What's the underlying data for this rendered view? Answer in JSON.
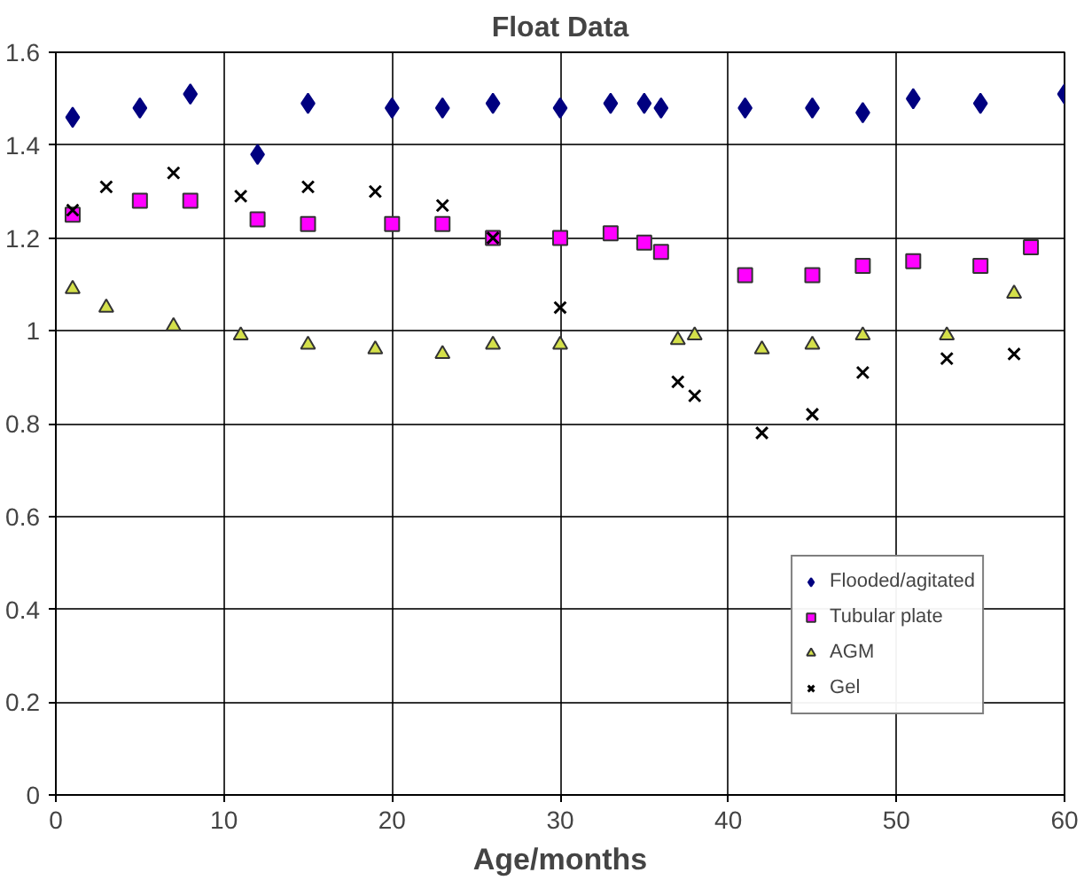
{
  "chart_data": {
    "type": "scatter",
    "title": "Float Data",
    "xlabel": "Age/months",
    "xlim": [
      0,
      60
    ],
    "ylim": [
      0,
      1.6
    ],
    "xticks": [
      0,
      10,
      20,
      30,
      40,
      50,
      60
    ],
    "yticks": [
      0,
      {
        "value": 0.2,
        "label": "0.2"
      },
      {
        "value": 0.4,
        "label": "0.4"
      },
      {
        "value": 0.6,
        "label": "0.6"
      },
      {
        "value": 0.8,
        "label": "0.8"
      },
      1,
      {
        "value": 1.2,
        "label": "1.2"
      },
      {
        "value": 1.4,
        "label": "1.4"
      },
      {
        "value": 1.6,
        "label": "1.6"
      }
    ],
    "grid": true,
    "legend": "bottom right",
    "series": [
      {
        "name": "Flooded/agitated",
        "color": "#000080",
        "marker": "diamond",
        "x": [
          1,
          5,
          8,
          12,
          15,
          20,
          23,
          26,
          30,
          33,
          35,
          36,
          41,
          45,
          48,
          51,
          55,
          60
        ],
        "values": [
          1.46,
          1.48,
          1.51,
          1.38,
          1.49,
          1.48,
          1.48,
          1.49,
          1.48,
          1.49,
          1.49,
          1.48,
          1.48,
          1.48,
          1.47,
          1.5,
          1.49,
          1.51
        ]
      },
      {
        "name": "Tubular plate",
        "color": "#ff00ff",
        "marker": "square",
        "x": [
          1,
          5,
          8,
          12,
          15,
          20,
          23,
          26,
          30,
          33,
          35,
          36,
          41,
          45,
          48,
          51,
          55,
          58
        ],
        "values": [
          1.25,
          1.28,
          1.28,
          1.24,
          1.23,
          1.23,
          1.23,
          1.2,
          1.2,
          1.21,
          1.19,
          1.17,
          1.12,
          1.12,
          1.14,
          1.15,
          1.14,
          1.18
        ]
      },
      {
        "name": "AGM",
        "color": "#d4e04a",
        "marker": "triangle",
        "x": [
          1,
          3,
          7,
          11,
          15,
          19,
          23,
          26,
          30,
          37,
          38,
          42,
          45,
          48,
          53,
          57
        ],
        "values": [
          1.09,
          1.05,
          1.01,
          0.99,
          0.97,
          0.96,
          0.95,
          0.97,
          0.97,
          0.98,
          0.99,
          0.96,
          0.97,
          0.99,
          0.99,
          1.08
        ]
      },
      {
        "name": "Gel",
        "color": "#000000",
        "marker": "cross",
        "x": [
          1,
          3,
          7,
          11,
          15,
          19,
          23,
          26,
          30,
          37,
          38,
          42,
          45,
          48,
          53,
          57
        ],
        "values": [
          1.26,
          1.31,
          1.34,
          1.29,
          1.31,
          1.3,
          1.27,
          1.2,
          1.05,
          0.89,
          0.86,
          0.78,
          0.82,
          0.91,
          0.94,
          0.95
        ]
      }
    ]
  }
}
